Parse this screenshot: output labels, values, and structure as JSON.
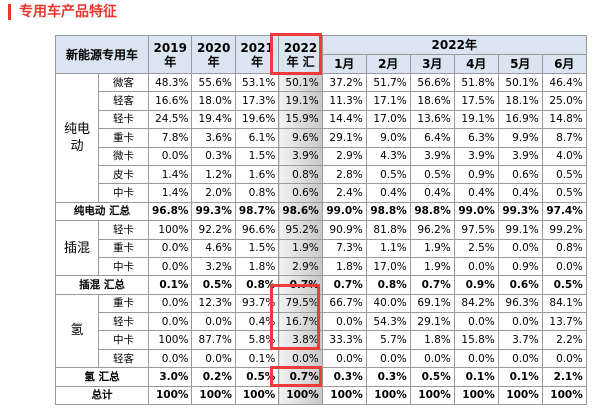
{
  "title": "专用车产品特征",
  "table": {
    "corner": "新能源专用车",
    "years": [
      "2019年",
      "2020年",
      "2021年",
      "2022年 汇"
    ],
    "year_span": "2022年",
    "months": [
      "1月",
      "2月",
      "3月",
      "4月",
      "5月",
      "6月"
    ],
    "groups": [
      {
        "name": "纯电动",
        "rows": [
          {
            "label": "微客",
            "values": [
              "48.3%",
              "55.6%",
              "53.1%",
              "50.1%",
              "37.2%",
              "51.7%",
              "56.6%",
              "51.8%",
              "50.1%",
              "46.4%"
            ]
          },
          {
            "label": "轻客",
            "values": [
              "16.6%",
              "18.0%",
              "17.3%",
              "19.1%",
              "11.3%",
              "17.1%",
              "18.6%",
              "17.5%",
              "18.1%",
              "25.0%"
            ]
          },
          {
            "label": "轻卡",
            "values": [
              "24.5%",
              "19.4%",
              "19.6%",
              "15.9%",
              "14.4%",
              "17.0%",
              "13.6%",
              "19.1%",
              "16.9%",
              "14.8%"
            ]
          },
          {
            "label": "重卡",
            "values": [
              "7.8%",
              "3.6%",
              "6.1%",
              "9.6%",
              "29.1%",
              "9.0%",
              "6.4%",
              "6.3%",
              "9.9%",
              "8.7%"
            ]
          },
          {
            "label": "微卡",
            "values": [
              "0.0%",
              "0.3%",
              "1.5%",
              "3.9%",
              "2.9%",
              "4.3%",
              "3.9%",
              "3.9%",
              "3.9%",
              "4.0%"
            ]
          },
          {
            "label": "皮卡",
            "values": [
              "1.4%",
              "1.2%",
              "1.6%",
              "0.8%",
              "2.8%",
              "0.5%",
              "0.5%",
              "0.9%",
              "0.6%",
              "0.5%"
            ]
          },
          {
            "label": "中卡",
            "values": [
              "1.4%",
              "2.0%",
              "0.8%",
              "0.6%",
              "2.4%",
              "0.4%",
              "0.4%",
              "0.4%",
              "0.4%",
              "0.5%"
            ]
          }
        ],
        "total": {
          "label": "纯电动 汇总",
          "values": [
            "96.8%",
            "99.3%",
            "98.7%",
            "98.6%",
            "99.0%",
            "98.8%",
            "98.8%",
            "99.0%",
            "99.3%",
            "97.4%"
          ]
        }
      },
      {
        "name": "插混",
        "rows": [
          {
            "label": "轻卡",
            "values": [
              "100%",
              "92.2%",
              "96.6%",
              "95.2%",
              "90.9%",
              "81.8%",
              "96.2%",
              "97.5%",
              "99.1%",
              "99.2%"
            ]
          },
          {
            "label": "重卡",
            "values": [
              "0.0%",
              "4.6%",
              "1.5%",
              "1.9%",
              "7.3%",
              "1.1%",
              "1.9%",
              "2.5%",
              "0.0%",
              "0.8%"
            ]
          },
          {
            "label": "中卡",
            "values": [
              "0.0%",
              "3.2%",
              "1.8%",
              "2.9%",
              "1.8%",
              "17.0%",
              "1.9%",
              "0.0%",
              "0.9%",
              "0.0%"
            ]
          }
        ],
        "total": {
          "label": "插混 汇总",
          "values": [
            "0.1%",
            "0.5%",
            "0.8%",
            "0.7%",
            "0.7%",
            "0.8%",
            "0.7%",
            "0.9%",
            "0.6%",
            "0.5%"
          ]
        }
      },
      {
        "name": "氢",
        "rows": [
          {
            "label": "重卡",
            "values": [
              "0.0%",
              "12.3%",
              "93.7%",
              "79.5%",
              "66.7%",
              "40.0%",
              "69.1%",
              "84.2%",
              "96.3%",
              "84.1%"
            ]
          },
          {
            "label": "轻卡",
            "values": [
              "0.0%",
              "0.0%",
              "0.4%",
              "16.7%",
              "0.0%",
              "54.3%",
              "29.1%",
              "0.0%",
              "0.0%",
              "13.7%"
            ]
          },
          {
            "label": "中卡",
            "values": [
              "100%",
              "87.7%",
              "5.8%",
              "3.8%",
              "33.3%",
              "5.7%",
              "1.8%",
              "15.8%",
              "3.7%",
              "2.2%"
            ]
          },
          {
            "label": "轻客",
            "values": [
              "0.0%",
              "0.0%",
              "0.1%",
              "0.0%",
              "0.0%",
              "0.0%",
              "0.0%",
              "0.0%",
              "0.0%",
              "0.0%"
            ]
          }
        ],
        "total": {
          "label": "氢 汇总",
          "values": [
            "3.0%",
            "0.2%",
            "0.5%",
            "0.7%",
            "0.3%",
            "0.3%",
            "0.5%",
            "0.1%",
            "0.1%",
            "2.1%"
          ]
        }
      }
    ],
    "grand_total": {
      "label": "总计",
      "values": [
        "100%",
        "100%",
        "100%",
        "100%",
        "100%",
        "100%",
        "100%",
        "100%",
        "100%",
        "100%"
      ]
    }
  }
}
